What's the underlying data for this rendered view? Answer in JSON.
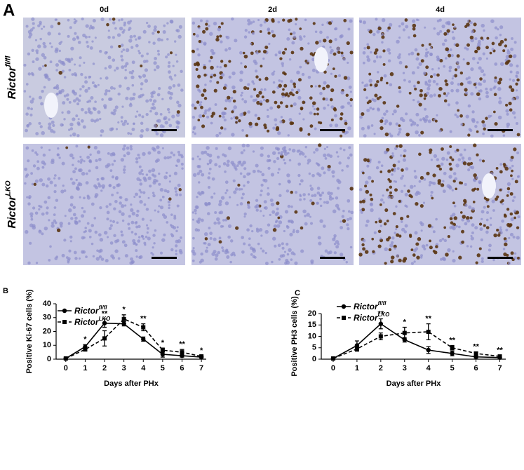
{
  "figure_a": {
    "panel_label": "A",
    "columns": [
      "0d",
      "2d",
      "4d"
    ],
    "rows": [
      {
        "name": "Rictor",
        "superscript": "fl/fl"
      },
      {
        "name": "Rictor",
        "superscript": "LKO"
      }
    ]
  },
  "chart_data": [
    {
      "type": "line",
      "panel_label": "B",
      "y_label": "Positive Ki-67 cells (%)",
      "x_label": "Days after PHx",
      "x": [
        0,
        1,
        2,
        3,
        4,
        5,
        6,
        7
      ],
      "xlim": [
        -0.5,
        7.25
      ],
      "xticks": [
        0,
        1,
        2,
        3,
        4,
        5,
        6,
        7
      ],
      "ylim": [
        0,
        40
      ],
      "yticks": [
        0,
        10,
        20,
        30,
        40
      ],
      "series": [
        {
          "name": "Rictor",
          "name_superscript": "fl/fl",
          "color": "#000000",
          "linestyle": "solid",
          "marker": "circle",
          "values": [
            0.5,
            9,
            26,
            25.5,
            14.5,
            3.5,
            2.5,
            1.5
          ],
          "errors": [
            0.3,
            1.5,
            3,
            1.5,
            1.5,
            2,
            1,
            0.5
          ]
        },
        {
          "name": "Rictor",
          "name_superscript": "LKO",
          "color": "#000000",
          "linestyle": "dashed",
          "marker": "square",
          "values": [
            0.5,
            7,
            15,
            29,
            23,
            6.5,
            5,
            2
          ],
          "errors": [
            0.3,
            1,
            5.5,
            3,
            2.5,
            1.5,
            2,
            0.5
          ]
        }
      ],
      "significance": [
        null,
        "*",
        "**",
        "*",
        "**",
        "*",
        "**",
        "*"
      ]
    },
    {
      "type": "line",
      "panel_label": "C",
      "y_label": "Positive PH3 cells (%)",
      "x_label": "Days after PHx",
      "x": [
        0,
        1,
        2,
        3,
        4,
        5,
        6,
        7
      ],
      "xlim": [
        -0.5,
        7.25
      ],
      "xticks": [
        0,
        1,
        2,
        3,
        4,
        5,
        6,
        7
      ],
      "ylim": [
        0,
        20
      ],
      "yticks": [
        0,
        5,
        10,
        15,
        20
      ],
      "series": [
        {
          "name": "Rictor",
          "name_superscript": "fl/fl",
          "color": "#000000",
          "linestyle": "solid",
          "marker": "circle",
          "values": [
            0.3,
            6,
            15.5,
            8.5,
            4,
            2.5,
            1,
            0.7
          ],
          "errors": [
            0.2,
            2,
            2.2,
            1,
            1.5,
            1,
            0.5,
            0.3
          ]
        },
        {
          "name": "Rictor",
          "name_superscript": "LKO",
          "color": "#000000",
          "linestyle": "dashed",
          "marker": "square",
          "values": [
            0.3,
            4.5,
            10,
            11.5,
            12,
            5,
            2.5,
            1.2
          ],
          "errors": [
            0.2,
            1,
            1.5,
            2.5,
            3.5,
            1,
            0.7,
            0.5
          ]
        }
      ],
      "significance": [
        null,
        null,
        "**",
        "*",
        "**",
        "**",
        "**",
        "**"
      ]
    }
  ]
}
